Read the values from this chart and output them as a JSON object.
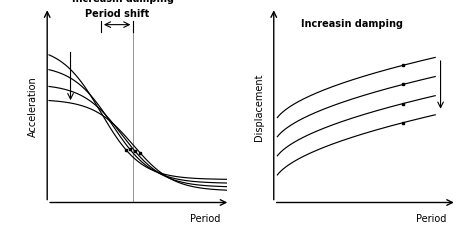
{
  "fig_width": 4.72,
  "fig_height": 2.25,
  "dpi": 100,
  "background_color": "#ffffff",
  "line_color": "#000000",
  "left_title": "Increasin damping",
  "left_period_shift_label": "Period shift",
  "left_xlabel": "Period",
  "left_ylabel": "Acceleration",
  "right_title": "Increasin damping",
  "right_xlabel": "Period",
  "right_ylabel": "Displacement",
  "font_size": 7.0,
  "lw": 0.85
}
